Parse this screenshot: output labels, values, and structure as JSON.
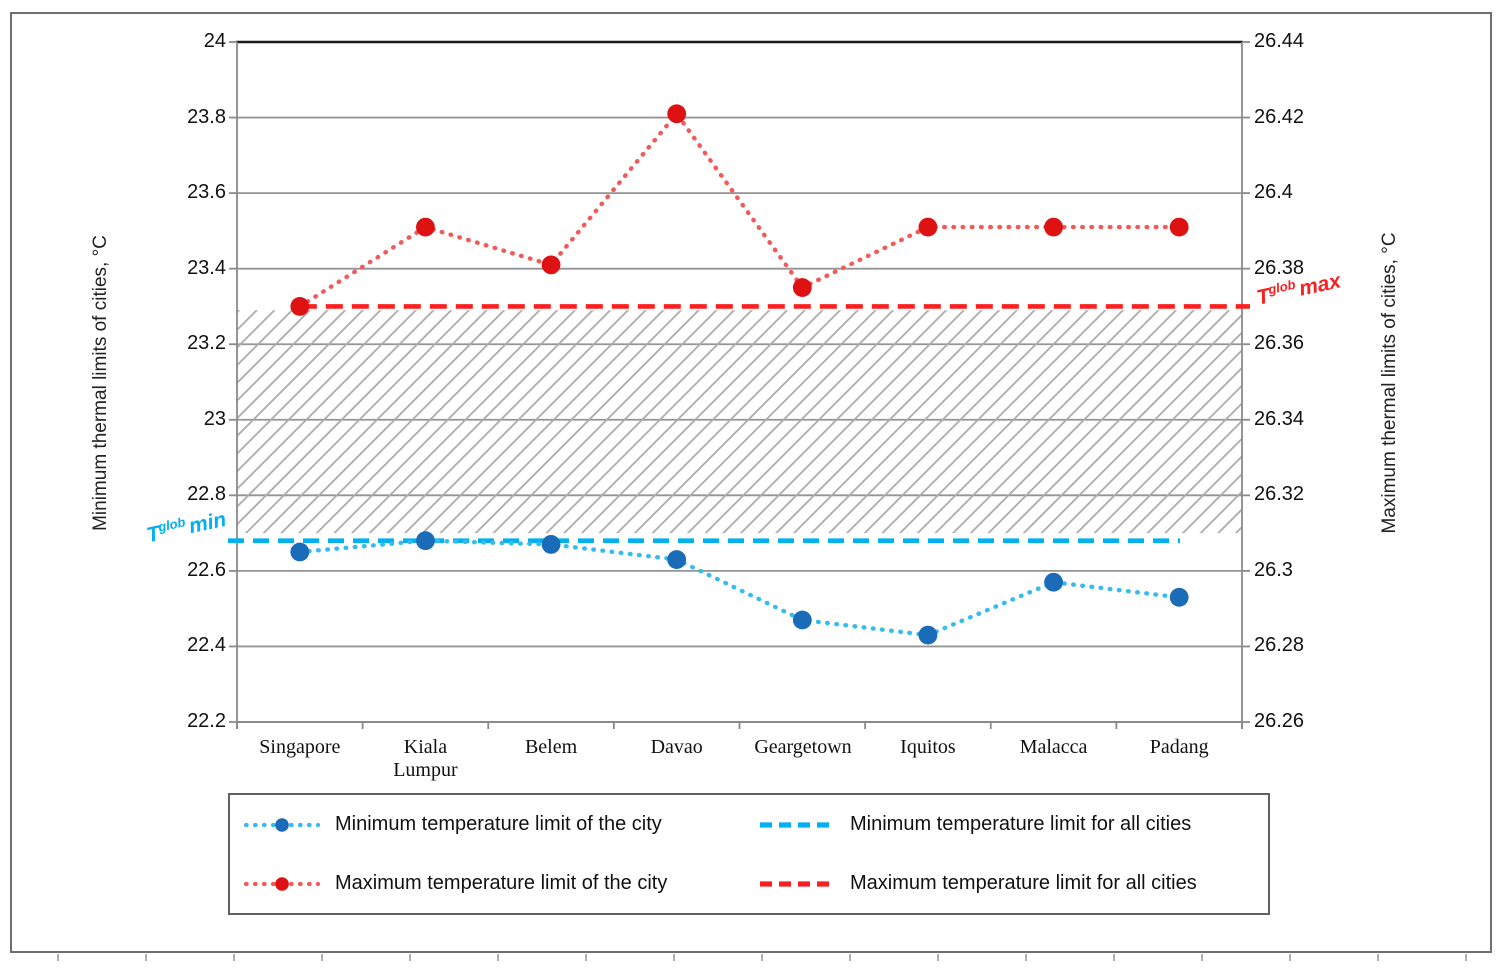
{
  "colors": {
    "min_marker": "#1B6CB8",
    "min_series_line": "#35BCEE",
    "min_all_line": "#00B0F0",
    "max_marker": "#DE1212",
    "max_series_line": "#F05A5A",
    "max_all_line": "#FB2020",
    "hatch": "#ABABAB",
    "gridline": "#949494",
    "axis": "#8A8A8A",
    "plot_top_border": "#1A1A1A"
  },
  "chart_data": {
    "type": "line",
    "categories": [
      "Singapore",
      "Kiala Lumpur",
      "Belem",
      "Davao",
      "Geargetown",
      "Iquitos",
      "Malacca",
      "Padang"
    ],
    "series": [
      {
        "name": "Minimum temperature limit of the city",
        "axis": "left",
        "style": "dotted-with-markers",
        "values": [
          22.65,
          22.68,
          22.67,
          22.63,
          22.47,
          22.43,
          22.57,
          22.53
        ]
      },
      {
        "name": "Maximum temperature limit of the city",
        "axis": "left",
        "style": "dotted-with-markers",
        "values": [
          23.3,
          23.51,
          23.41,
          23.81,
          23.35,
          23.51,
          23.51,
          23.51
        ]
      }
    ],
    "reference_lines": [
      {
        "name": "Minimum temperature limit for all cities",
        "value": 22.68,
        "style": "dashed"
      },
      {
        "name": "Maximum temperature limit for all cities",
        "value": 23.3,
        "style": "dashed"
      }
    ],
    "band": {
      "from": 22.7,
      "to": 23.29,
      "style": "diagonal-hatch"
    },
    "left_axis": {
      "label": "Minimum thermal limits of cities, °C",
      "min": 22.2,
      "max": 24,
      "tick_step": 0.2,
      "tick_labels": [
        "24",
        "23.8",
        "23.6",
        "23.4",
        "23.2",
        "23",
        "22.8",
        "22.6",
        "22.4",
        "22.2"
      ]
    },
    "right_axis": {
      "label": "Maximum thermal limits of cities, °C",
      "min": 26.26,
      "max": 26.44,
      "tick_step": 0.02,
      "tick_labels": [
        "26.44",
        "26.42",
        "26.4",
        "26.38",
        "26.36",
        "26.34",
        "26.32",
        "26.3",
        "26.28",
        "26.26"
      ]
    },
    "annotations": {
      "min": {
        "base": "T",
        "sup": "glob",
        "word": "min"
      },
      "max": {
        "base": "T",
        "sup": "glob",
        "word": "max"
      }
    },
    "grid": true,
    "legend_position": "bottom"
  },
  "legend": {
    "items": [
      {
        "label": "Minimum temperature limit of the city",
        "sample": "dotted-line-blue-marker"
      },
      {
        "label": "Minimum temperature limit for all cities",
        "sample": "dashed-cyan-line"
      },
      {
        "label": "Maximum temperature limit of the city",
        "sample": "dotted-line-red-marker"
      },
      {
        "label": "Maximum temperature limit for all cities",
        "sample": "dashed-red-line"
      }
    ]
  }
}
